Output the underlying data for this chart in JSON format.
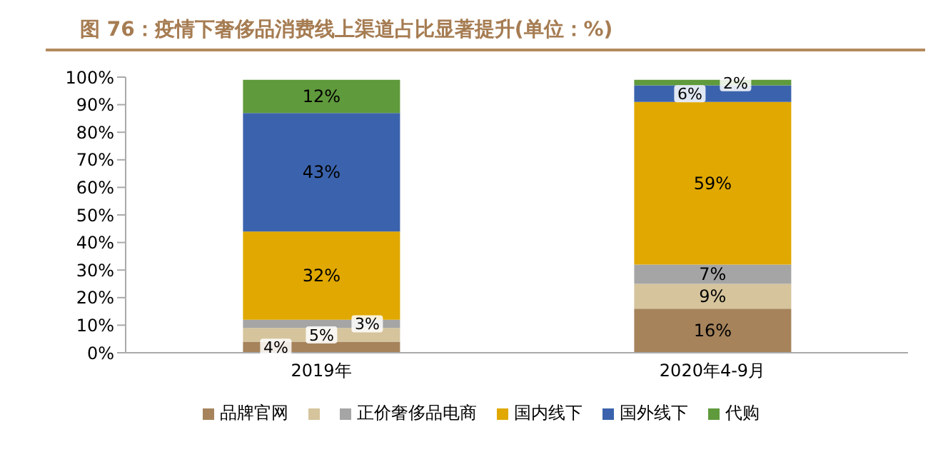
{
  "chart_data": {
    "type": "bar",
    "title": "图 76：疫情下奢侈品消费线上渠道占比显著提升(单位：%)",
    "categories": [
      "2019年",
      "2020年4-9月"
    ],
    "stacked": true,
    "ylim": [
      0,
      100
    ],
    "yticks": [
      {
        "value": 0,
        "label": "0%"
      },
      {
        "value": 10,
        "label": "10%"
      },
      {
        "value": 20,
        "label": "20%"
      },
      {
        "value": 30,
        "label": "30%"
      },
      {
        "value": 40,
        "label": "40%"
      },
      {
        "value": 50,
        "label": "50%"
      },
      {
        "value": 60,
        "label": "60%"
      },
      {
        "value": 70,
        "label": "70%"
      },
      {
        "value": 80,
        "label": "80%"
      },
      {
        "value": 90,
        "label": "90%"
      },
      {
        "value": 100,
        "label": "100%"
      }
    ],
    "legend": "bottom",
    "grid": false,
    "series": [
      {
        "name": "品牌官网",
        "color": "#a6835b",
        "values": [
          4,
          16
        ],
        "value_labels": [
          "4%",
          "16%"
        ]
      },
      {
        "color": "#d5c49c",
        "values": [
          5,
          9
        ],
        "value_labels": [
          "5%",
          "9%"
        ]
      },
      {
        "name": "正价奢侈品电商",
        "color": "#a5a5a5",
        "values": [
          3,
          7
        ],
        "value_labels": [
          "3%",
          "7%"
        ]
      },
      {
        "name": "国内线下",
        "color": "#e0a800",
        "values": [
          32,
          59
        ],
        "value_labels": [
          "32%",
          "59%"
        ]
      },
      {
        "name": "国外线下",
        "color": "#3b63ad",
        "values": [
          43,
          6
        ],
        "value_labels": [
          "43%",
          "6%"
        ]
      },
      {
        "name": "代购",
        "color": "#5f9a3c",
        "values": [
          12,
          2
        ],
        "value_labels": [
          "12%",
          "2%"
        ]
      }
    ]
  }
}
